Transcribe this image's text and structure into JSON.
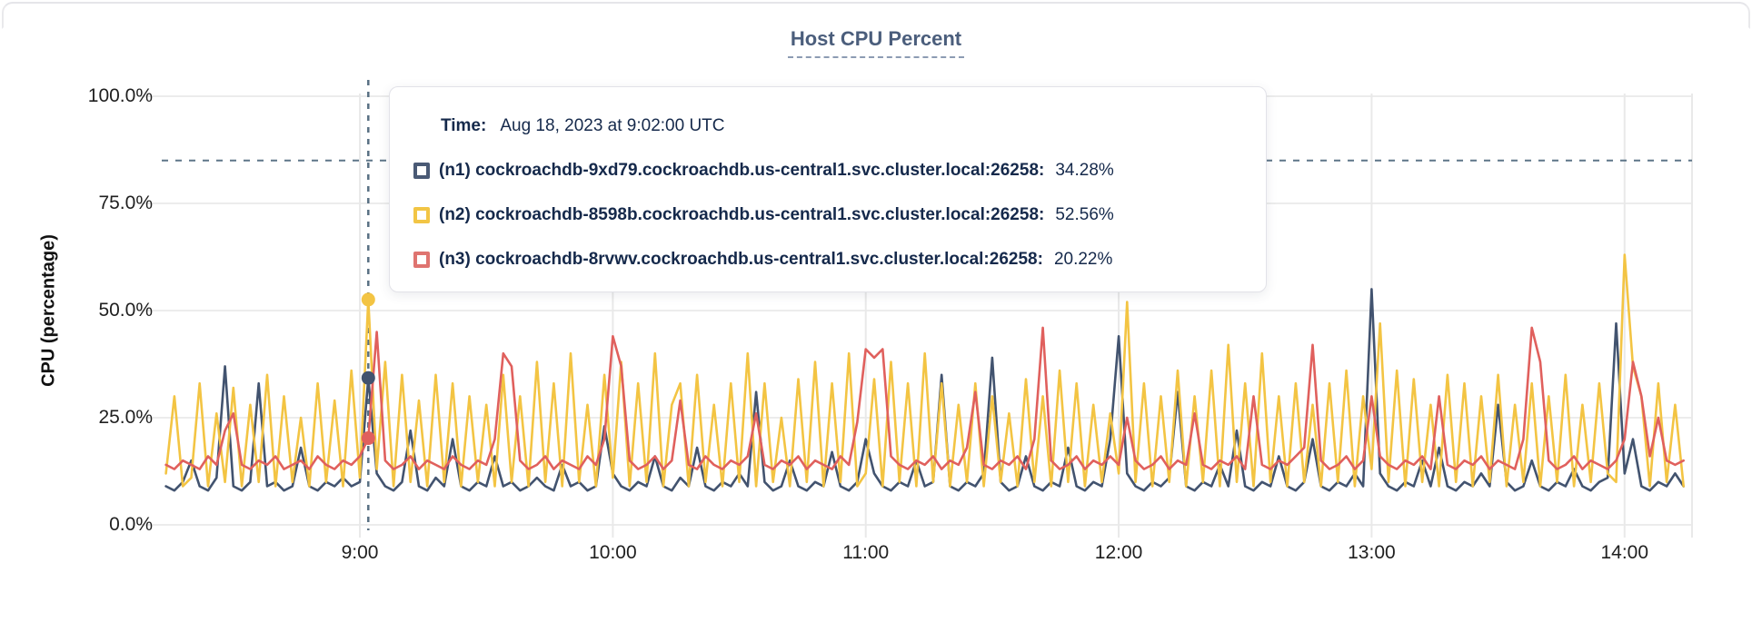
{
  "card": {
    "title": "Host CPU Percent"
  },
  "tooltip": {
    "time_label": "Time:",
    "time_value": "Aug 18, 2023 at 9:02:00 UTC",
    "rows": [
      {
        "name": "(n1) cockroachdb-9xd79.cockroachdb.us-central1.svc.cluster.local:26258:",
        "value": "34.28%",
        "color": "#4a5a75"
      },
      {
        "name": "(n2) cockroachdb-8598b.cockroachdb.us-central1.svc.cluster.local:26258:",
        "value": "52.56%",
        "color": "#f2c545"
      },
      {
        "name": "(n3) cockroachdb-8rvwv.cockroachdb.us-central1.svc.cluster.local:26258:",
        "value": "20.22%",
        "color": "#df7470"
      }
    ]
  },
  "chart_data": {
    "type": "line",
    "title": "Host CPU Percent",
    "xlabel": "",
    "ylabel": "CPU (percentage)",
    "ylim": [
      0,
      100
    ],
    "grid": true,
    "legend_position": "tooltip",
    "annotation_color": "#5d7588",
    "grid_color_h": "#ececec",
    "grid_color_v": "#e9e9e9",
    "threshold_value": 85,
    "y_ticks": [
      {
        "label": "100.0%",
        "value": 100
      },
      {
        "label": "75.0%",
        "value": 75
      },
      {
        "label": "50.0%",
        "value": 50
      },
      {
        "label": "25.0%",
        "value": 25
      },
      {
        "label": "0.0%",
        "value": 0
      }
    ],
    "x_ticks": [
      {
        "label": "9:00",
        "hour": 9
      },
      {
        "label": "10:00",
        "hour": 10
      },
      {
        "label": "11:00",
        "hour": 11
      },
      {
        "label": "12:00",
        "hour": 12
      },
      {
        "label": "13:00",
        "hour": 13
      },
      {
        "label": "14:00",
        "hour": 14
      }
    ],
    "x_range_hours": [
      8.2167,
      14.2667
    ],
    "sample_start_hour": 8.2333,
    "sample_step_minutes": 2,
    "hover": {
      "hour": 9.0333,
      "time_text": "Aug 18, 2023 at 9:02:00 UTC",
      "points": [
        {
          "series": 0,
          "value": 34.28
        },
        {
          "series": 1,
          "value": 52.56
        },
        {
          "series": 2,
          "value": 20.22
        }
      ]
    },
    "series": [
      {
        "id": "n1",
        "name": "(n1) cockroachdb-9xd79.cockroachdb.us-central1.svc.cluster.local:26258",
        "color": "#42536f",
        "values": [
          9,
          8,
          10,
          15,
          9,
          8,
          11,
          37,
          9,
          8,
          10,
          33,
          9,
          10,
          8,
          9,
          18,
          9,
          8,
          10,
          9,
          11,
          9,
          10,
          34.28,
          12,
          9,
          8,
          10,
          22,
          9,
          8,
          11,
          9,
          20,
          9,
          8,
          10,
          9,
          16,
          9,
          10,
          8,
          9,
          11,
          9,
          8,
          14,
          9,
          10,
          8,
          9,
          23,
          12,
          9,
          8,
          10,
          9,
          16,
          9,
          8,
          11,
          9,
          18,
          9,
          8,
          10,
          9,
          12,
          9,
          31,
          10,
          8,
          9,
          15,
          9,
          8,
          10,
          9,
          17,
          9,
          8,
          10,
          20,
          12,
          9,
          8,
          10,
          9,
          15,
          9,
          10,
          35,
          9,
          8,
          10,
          9,
          12,
          39,
          10,
          8,
          9,
          16,
          9,
          8,
          10,
          9,
          18,
          9,
          8,
          10,
          9,
          20,
          44,
          12,
          9,
          8,
          10,
          9,
          11,
          31,
          9,
          8,
          10,
          9,
          14,
          9,
          22,
          9,
          8,
          10,
          9,
          16,
          9,
          8,
          10,
          20,
          9,
          8,
          10,
          9,
          12,
          9,
          55,
          12,
          9,
          8,
          10,
          9,
          15,
          9,
          18,
          9,
          8,
          10,
          9,
          12,
          9,
          28,
          10,
          8,
          9,
          15,
          9,
          8,
          10,
          9,
          13,
          9,
          8,
          10,
          11,
          47,
          12,
          20,
          9,
          8,
          10,
          9,
          12,
          9
        ]
      },
      {
        "id": "n2",
        "name": "(n2) cockroachdb-8598b.cockroachdb.us-central1.svc.cluster.local:26258",
        "color": "#f3c443",
        "values": [
          12,
          30,
          9,
          11,
          33,
          9,
          26,
          10,
          32,
          9,
          28,
          10,
          35,
          9,
          30,
          10,
          25,
          9,
          33,
          10,
          29,
          9,
          36,
          11,
          52.56,
          13,
          38,
          9,
          35,
          10,
          29,
          9,
          35,
          10,
          33,
          9,
          30,
          10,
          28,
          9,
          35,
          10,
          30,
          9,
          38,
          10,
          33,
          9,
          40,
          10,
          28,
          9,
          35,
          11,
          38,
          9,
          33,
          10,
          40,
          9,
          28,
          33,
          9,
          35,
          10,
          28,
          9,
          33,
          10,
          40,
          9,
          33,
          10,
          25,
          9,
          34,
          10,
          38,
          9,
          33,
          10,
          40,
          9,
          12,
          34,
          9,
          38,
          10,
          33,
          9,
          40,
          10,
          33,
          9,
          28,
          10,
          33,
          9,
          30,
          10,
          26,
          9,
          34,
          10,
          30,
          9,
          36,
          10,
          33,
          9,
          28,
          10,
          26,
          12,
          52,
          10,
          33,
          9,
          30,
          10,
          36,
          9,
          30,
          10,
          36,
          9,
          42,
          10,
          33,
          9,
          40,
          10,
          30,
          9,
          33,
          10,
          28,
          9,
          33,
          10,
          36,
          9,
          30,
          13,
          47,
          10,
          36,
          9,
          34,
          10,
          28,
          9,
          35,
          10,
          33,
          9,
          30,
          10,
          35,
          9,
          28,
          10,
          33,
          9,
          30,
          10,
          35,
          9,
          28,
          10,
          33,
          12,
          10,
          63,
          37,
          30,
          9,
          33,
          10,
          28,
          9
        ]
      },
      {
        "id": "n3",
        "name": "(n3) cockroachdb-8rvwv.cockroachdb.us-central1.svc.cluster.local:26258",
        "color": "#e0605d",
        "values": [
          14,
          13,
          15,
          14,
          13,
          16,
          14,
          22,
          26,
          14,
          13,
          15,
          14,
          16,
          13,
          14,
          15,
          13,
          16,
          14,
          13,
          15,
          14,
          16,
          20.22,
          45,
          15,
          13,
          14,
          16,
          13,
          15,
          14,
          13,
          16,
          14,
          13,
          15,
          14,
          20,
          40,
          37,
          15,
          13,
          14,
          16,
          13,
          15,
          14,
          13,
          16,
          14,
          20,
          44,
          37,
          15,
          13,
          14,
          16,
          13,
          15,
          29,
          14,
          13,
          16,
          14,
          13,
          15,
          14,
          16,
          26,
          14,
          13,
          15,
          14,
          16,
          13,
          15,
          14,
          13,
          16,
          14,
          24,
          41,
          39,
          41,
          16,
          14,
          13,
          15,
          14,
          16,
          13,
          15,
          14,
          18,
          31,
          14,
          13,
          15,
          14,
          16,
          13,
          20,
          46,
          15,
          13,
          14,
          16,
          13,
          15,
          14,
          16,
          14,
          25,
          15,
          13,
          14,
          16,
          13,
          15,
          14,
          26,
          14,
          13,
          15,
          14,
          16,
          13,
          30,
          14,
          13,
          15,
          14,
          16,
          18,
          42,
          15,
          13,
          14,
          16,
          13,
          15,
          30,
          16,
          14,
          13,
          15,
          14,
          16,
          13,
          30,
          14,
          13,
          15,
          14,
          16,
          13,
          15,
          14,
          13,
          20,
          46,
          38,
          15,
          13,
          14,
          16,
          13,
          15,
          14,
          13,
          15,
          20,
          38,
          30,
          16,
          25,
          15,
          14,
          15
        ]
      }
    ]
  }
}
